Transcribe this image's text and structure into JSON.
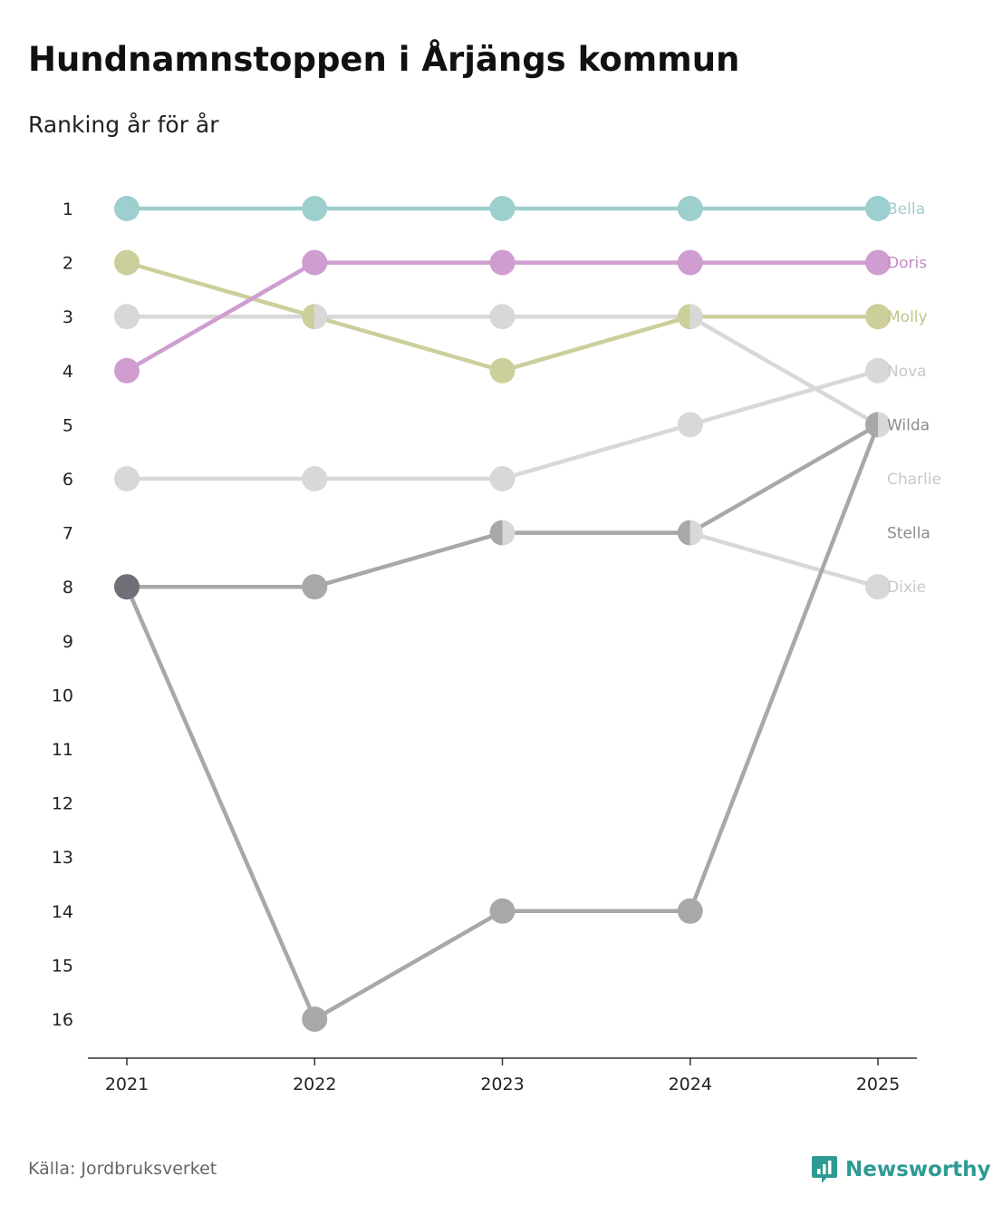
{
  "title": "Hundnamnstoppen i Årjängs kommun",
  "subtitle": "Ranking år för år",
  "source": "Källa: Jordbruksverket",
  "brand": "Newsworthy",
  "colors": {
    "brand": "#2e9b93",
    "axis": "#333333"
  },
  "chart_data": {
    "type": "line",
    "title": "Hundnamnstoppen i Årjängs kommun",
    "subtitle": "Ranking år för år",
    "x": [
      "2021",
      "2022",
      "2023",
      "2024",
      "2025"
    ],
    "xlabel": "",
    "ylabel": "",
    "y_ticks": [
      "1",
      "2",
      "3",
      "4",
      "5",
      "6",
      "7",
      "8",
      "9",
      "10",
      "11",
      "12",
      "13",
      "14",
      "15",
      "16"
    ],
    "ylim": [
      1,
      16
    ],
    "y_inverted": true,
    "series": [
      {
        "name": "Bella",
        "color": "#9ccfcd",
        "values": [
          1,
          1,
          1,
          1,
          1
        ]
      },
      {
        "name": "Doris",
        "color": "#cf9dd0",
        "values": [
          4,
          2,
          2,
          2,
          2
        ]
      },
      {
        "name": "Molly",
        "color": "#cccf9b",
        "values": [
          2,
          3,
          4,
          3,
          3
        ]
      },
      {
        "name": "Nova",
        "color": "#d8d8d8",
        "values": [
          6,
          6,
          6,
          5,
          4
        ]
      },
      {
        "name": "Wilda",
        "color": "#a8a8a8",
        "values": [
          8,
          16,
          14,
          14,
          5
        ]
      },
      {
        "name": "Charlie",
        "color": "#d8d8d8",
        "values": [
          3,
          3,
          3,
          3,
          5
        ]
      },
      {
        "name": "Stella",
        "color": "#a8a8a8",
        "values": [
          8,
          8,
          7,
          7,
          5
        ]
      },
      {
        "name": "Dixie",
        "color": "#d8d8d8",
        "values": [
          null,
          null,
          7,
          7,
          8
        ]
      }
    ],
    "label_colors": {
      "Bella": "#9ccfcd",
      "Doris": "#c48ac6",
      "Molly": "#c2c68a",
      "Nova": "#c8c8c8",
      "Wilda": "#8c8c8c",
      "Charlie": "#c8c8c8",
      "Stella": "#8c8c8c",
      "Dixie": "#c8c8c8"
    },
    "overlap_color": "#6f6f77",
    "legend": "labels at right end of lines"
  }
}
